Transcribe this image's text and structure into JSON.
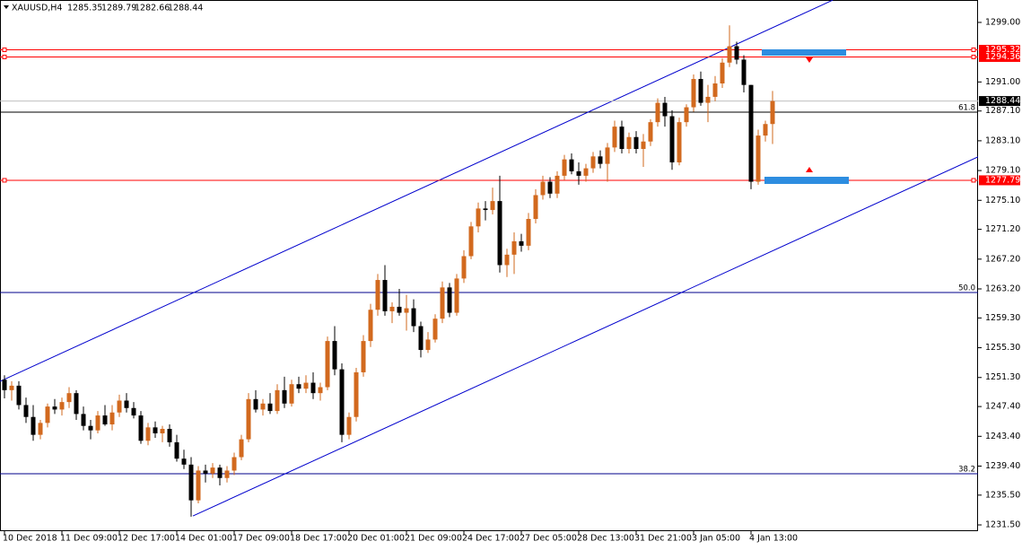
{
  "chart_data": {
    "type": "candlestick",
    "symbol": "XAUUSD,H4",
    "categories": [
      "10 Dec 2018",
      null,
      null,
      null,
      null,
      null,
      null,
      null,
      "11 Dec 09:00",
      null,
      null,
      null,
      null,
      null,
      null,
      null,
      "12 Dec 17:00",
      null,
      null,
      null,
      null,
      null,
      null,
      null,
      "14 Dec 01:00",
      null,
      null,
      null,
      null,
      null,
      null,
      null,
      "17 Dec 09:00",
      null,
      null,
      null,
      null,
      null,
      null,
      null,
      "18 Dec 17:00",
      null,
      null,
      null,
      null,
      null,
      null,
      null,
      "20 Dec 01:00",
      null,
      null,
      null,
      null,
      null,
      null,
      null,
      "21 Dec 09:00",
      null,
      null,
      null,
      null,
      null,
      null,
      null,
      "24 Dec 17:00",
      null,
      null,
      null,
      null,
      null,
      null,
      null,
      "27 Dec 05:00",
      null,
      null,
      null,
      null,
      null,
      null,
      null,
      "28 Dec 13:00",
      null,
      null,
      null,
      null,
      null,
      null,
      null,
      "31 Dec 21:00",
      null,
      null,
      null,
      null,
      null,
      null,
      null,
      "3 Jan 05:00",
      null,
      null,
      null,
      null,
      null,
      null,
      null,
      "4 Jan 13:00",
      null,
      null,
      null
    ],
    "open": [
      1251.0,
      1249.6,
      1250.2,
      1247.6,
      1246.0,
      1243.6,
      1245.2,
      1247.4,
      1247.0,
      1248.0,
      1249.2,
      1246.4,
      1244.8,
      1244.2,
      1246.2,
      1245.0,
      1246.6,
      1248.2,
      1247.2,
      1246.2,
      1242.8,
      1244.6,
      1243.8,
      1244.4,
      1242.6,
      1240.4,
      1239.6,
      1234.8,
      1238.8,
      1238.4,
      1239.2,
      1237.8,
      1238.8,
      1240.6,
      1243.0,
      1248.4,
      1247.0,
      1247.8,
      1246.8,
      1249.6,
      1247.8,
      1250.4,
      1249.8,
      1250.6,
      1249.2,
      1250.0,
      1256.2,
      1252.4,
      1243.6,
      1246.0,
      1252.0,
      1256.2,
      1260.4,
      1264.4,
      1260.2,
      1260.8,
      1260.0,
      1260.6,
      1258.2,
      1255.0,
      1256.4,
      1259.2,
      1263.4,
      1260.0,
      1264.6,
      1267.6,
      1271.6,
      1274.0,
      1273.8,
      1275.0,
      1266.4,
      1267.8,
      1269.6,
      1269.0,
      1272.6,
      1275.8,
      1277.6,
      1276.0,
      1278.4,
      1280.6,
      1279.0,
      1278.4,
      1279.4,
      1281.0,
      1280.0,
      1282.2,
      1285.0,
      1282.0,
      1283.6,
      1282.0,
      1283.0,
      1285.6,
      1288.2,
      1286.4,
      1280.2,
      1285.6,
      1287.6,
      1291.4,
      1288.2,
      1289.0,
      1290.8,
      1293.6,
      1295.8,
      1294.0,
      1290.6,
      1277.6,
      1283.8,
      1285.35
    ],
    "high": [
      1251.6,
      1250.8,
      1250.8,
      1248.6,
      1247.6,
      1245.6,
      1247.8,
      1248.4,
      1248.6,
      1250.0,
      1249.6,
      1247.4,
      1245.6,
      1246.8,
      1247.6,
      1247.6,
      1249.0,
      1249.2,
      1248.0,
      1246.8,
      1245.2,
      1245.4,
      1244.8,
      1245.0,
      1243.6,
      1241.6,
      1240.6,
      1239.4,
      1239.6,
      1239.8,
      1239.6,
      1239.4,
      1241.2,
      1243.6,
      1249.2,
      1249.6,
      1248.4,
      1249.2,
      1250.4,
      1251.4,
      1251.0,
      1251.4,
      1251.6,
      1252.0,
      1250.6,
      1256.8,
      1258.2,
      1253.2,
      1246.6,
      1252.6,
      1257.0,
      1261.2,
      1265.2,
      1266.4,
      1261.4,
      1263.2,
      1262.4,
      1261.8,
      1258.8,
      1257.4,
      1259.8,
      1264.2,
      1264.0,
      1265.2,
      1268.4,
      1272.2,
      1274.8,
      1275.0,
      1276.8,
      1278.4,
      1268.6,
      1270.8,
      1270.6,
      1273.4,
      1276.6,
      1278.4,
      1278.2,
      1279.0,
      1281.2,
      1281.4,
      1280.2,
      1280.0,
      1281.6,
      1281.8,
      1282.8,
      1285.8,
      1285.8,
      1284.2,
      1284.4,
      1284.0,
      1286.0,
      1288.8,
      1289.0,
      1287.2,
      1286.2,
      1288.0,
      1292.0,
      1292.4,
      1290.6,
      1291.8,
      1294.2,
      1298.6,
      1296.4,
      1294.6,
      1290.6,
      1284.6,
      1285.8,
      1289.79
    ],
    "low": [
      1248.5,
      1248.2,
      1247.0,
      1245.2,
      1242.8,
      1243.0,
      1244.6,
      1246.4,
      1246.2,
      1247.2,
      1245.6,
      1244.2,
      1243.0,
      1243.8,
      1244.8,
      1244.2,
      1246.0,
      1246.6,
      1245.8,
      1242.4,
      1242.2,
      1243.2,
      1242.6,
      1242.0,
      1240.0,
      1239.0,
      1232.6,
      1234.4,
      1237.2,
      1237.8,
      1236.8,
      1237.2,
      1238.2,
      1240.2,
      1242.6,
      1246.6,
      1246.2,
      1246.4,
      1246.4,
      1247.2,
      1247.4,
      1249.2,
      1249.2,
      1248.4,
      1248.2,
      1249.6,
      1251.6,
      1242.6,
      1243.0,
      1245.4,
      1251.4,
      1255.4,
      1259.6,
      1259.6,
      1258.6,
      1259.6,
      1257.6,
      1257.4,
      1254.0,
      1254.6,
      1256.0,
      1258.6,
      1259.4,
      1259.6,
      1264.0,
      1267.2,
      1270.8,
      1272.4,
      1273.2,
      1265.4,
      1264.8,
      1265.2,
      1268.2,
      1268.4,
      1272.0,
      1275.2,
      1275.4,
      1275.4,
      1277.8,
      1278.6,
      1277.2,
      1277.6,
      1278.8,
      1279.4,
      1277.6,
      1281.6,
      1281.4,
      1281.4,
      1281.4,
      1279.6,
      1282.4,
      1285.0,
      1285.0,
      1279.2,
      1279.8,
      1285.0,
      1287.0,
      1287.8,
      1285.6,
      1288.4,
      1290.2,
      1293.0,
      1293.4,
      1289.6,
      1276.6,
      1277.2,
      1283.0,
      1282.66
    ],
    "close": [
      1249.6,
      1250.2,
      1247.6,
      1246.0,
      1243.6,
      1245.2,
      1247.4,
      1247.0,
      1248.0,
      1249.2,
      1246.4,
      1244.8,
      1244.2,
      1246.2,
      1245.0,
      1246.6,
      1248.2,
      1247.2,
      1246.2,
      1242.8,
      1244.6,
      1243.8,
      1244.4,
      1242.6,
      1240.4,
      1239.6,
      1234.8,
      1238.8,
      1238.4,
      1239.2,
      1237.8,
      1238.8,
      1240.6,
      1243.0,
      1248.4,
      1247.0,
      1247.8,
      1246.8,
      1249.6,
      1247.8,
      1250.4,
      1249.8,
      1250.6,
      1249.2,
      1250.0,
      1256.2,
      1252.4,
      1243.6,
      1246.0,
      1252.0,
      1256.2,
      1260.4,
      1264.4,
      1260.2,
      1260.8,
      1260.0,
      1260.6,
      1258.2,
      1255.0,
      1256.4,
      1259.2,
      1263.4,
      1260.0,
      1264.6,
      1267.6,
      1271.6,
      1274.0,
      1273.8,
      1275.0,
      1266.4,
      1267.8,
      1269.6,
      1269.0,
      1272.6,
      1275.8,
      1277.6,
      1276.0,
      1278.4,
      1280.6,
      1279.0,
      1278.4,
      1279.4,
      1281.0,
      1280.0,
      1282.2,
      1285.0,
      1282.0,
      1283.6,
      1282.0,
      1283.0,
      1285.6,
      1288.2,
      1286.4,
      1280.2,
      1285.6,
      1287.6,
      1291.4,
      1288.2,
      1289.0,
      1290.8,
      1293.6,
      1295.8,
      1294.0,
      1290.6,
      1277.6,
      1283.8,
      1285.35,
      1288.44
    ],
    "up_color": "#d2691e",
    "down_color": "#000000",
    "ylim": [
      1230.66,
      1302.01
    ],
    "yticks": [
      {
        "value": 1299.0,
        "label": "1299.00"
      },
      {
        "value": 1291.0,
        "label": "1291.00"
      },
      {
        "value": 1287.1,
        "label": "1287.10"
      },
      {
        "value": 1283.1,
        "label": "1283.10"
      },
      {
        "value": 1279.1,
        "label": "1279.10"
      },
      {
        "value": 1275.1,
        "label": "1275.10"
      },
      {
        "value": 1271.2,
        "label": "1271.20"
      },
      {
        "value": 1267.2,
        "label": "1267.20"
      },
      {
        "value": 1263.2,
        "label": "1263.20"
      },
      {
        "value": 1259.3,
        "label": "1259.30"
      },
      {
        "value": 1255.3,
        "label": "1255.30"
      },
      {
        "value": 1251.3,
        "label": "1251.30"
      },
      {
        "value": 1247.4,
        "label": "1247.40"
      },
      {
        "value": 1243.4,
        "label": "1243.40"
      },
      {
        "value": 1239.4,
        "label": "1239.40"
      },
      {
        "value": 1235.5,
        "label": "1235.50"
      },
      {
        "value": 1231.5,
        "label": "1231.50"
      }
    ],
    "levels": [
      {
        "value": 1295.32,
        "color": "#ff0000"
      },
      {
        "value": 1294.36,
        "color": "#ff0000"
      },
      {
        "value": 1277.79,
        "color": "#ff0000"
      }
    ],
    "fib_levels": [
      {
        "label": "61.8",
        "value": 1286.95,
        "color": "#000000"
      },
      {
        "label": "50.0",
        "value": 1262.72,
        "color": "#00008b"
      },
      {
        "label": "38.2",
        "value": 1238.37,
        "color": "#00008b"
      }
    ],
    "channel": {
      "color": "#0000cd",
      "upper": [
        [
          -0.6,
          1250.8
        ],
        [
          115.4,
          1302.0
        ]
      ],
      "lower": [
        [
          26.25,
          1232.7
        ],
        [
          136.4,
          1281.28
        ]
      ]
    }
  }
}
